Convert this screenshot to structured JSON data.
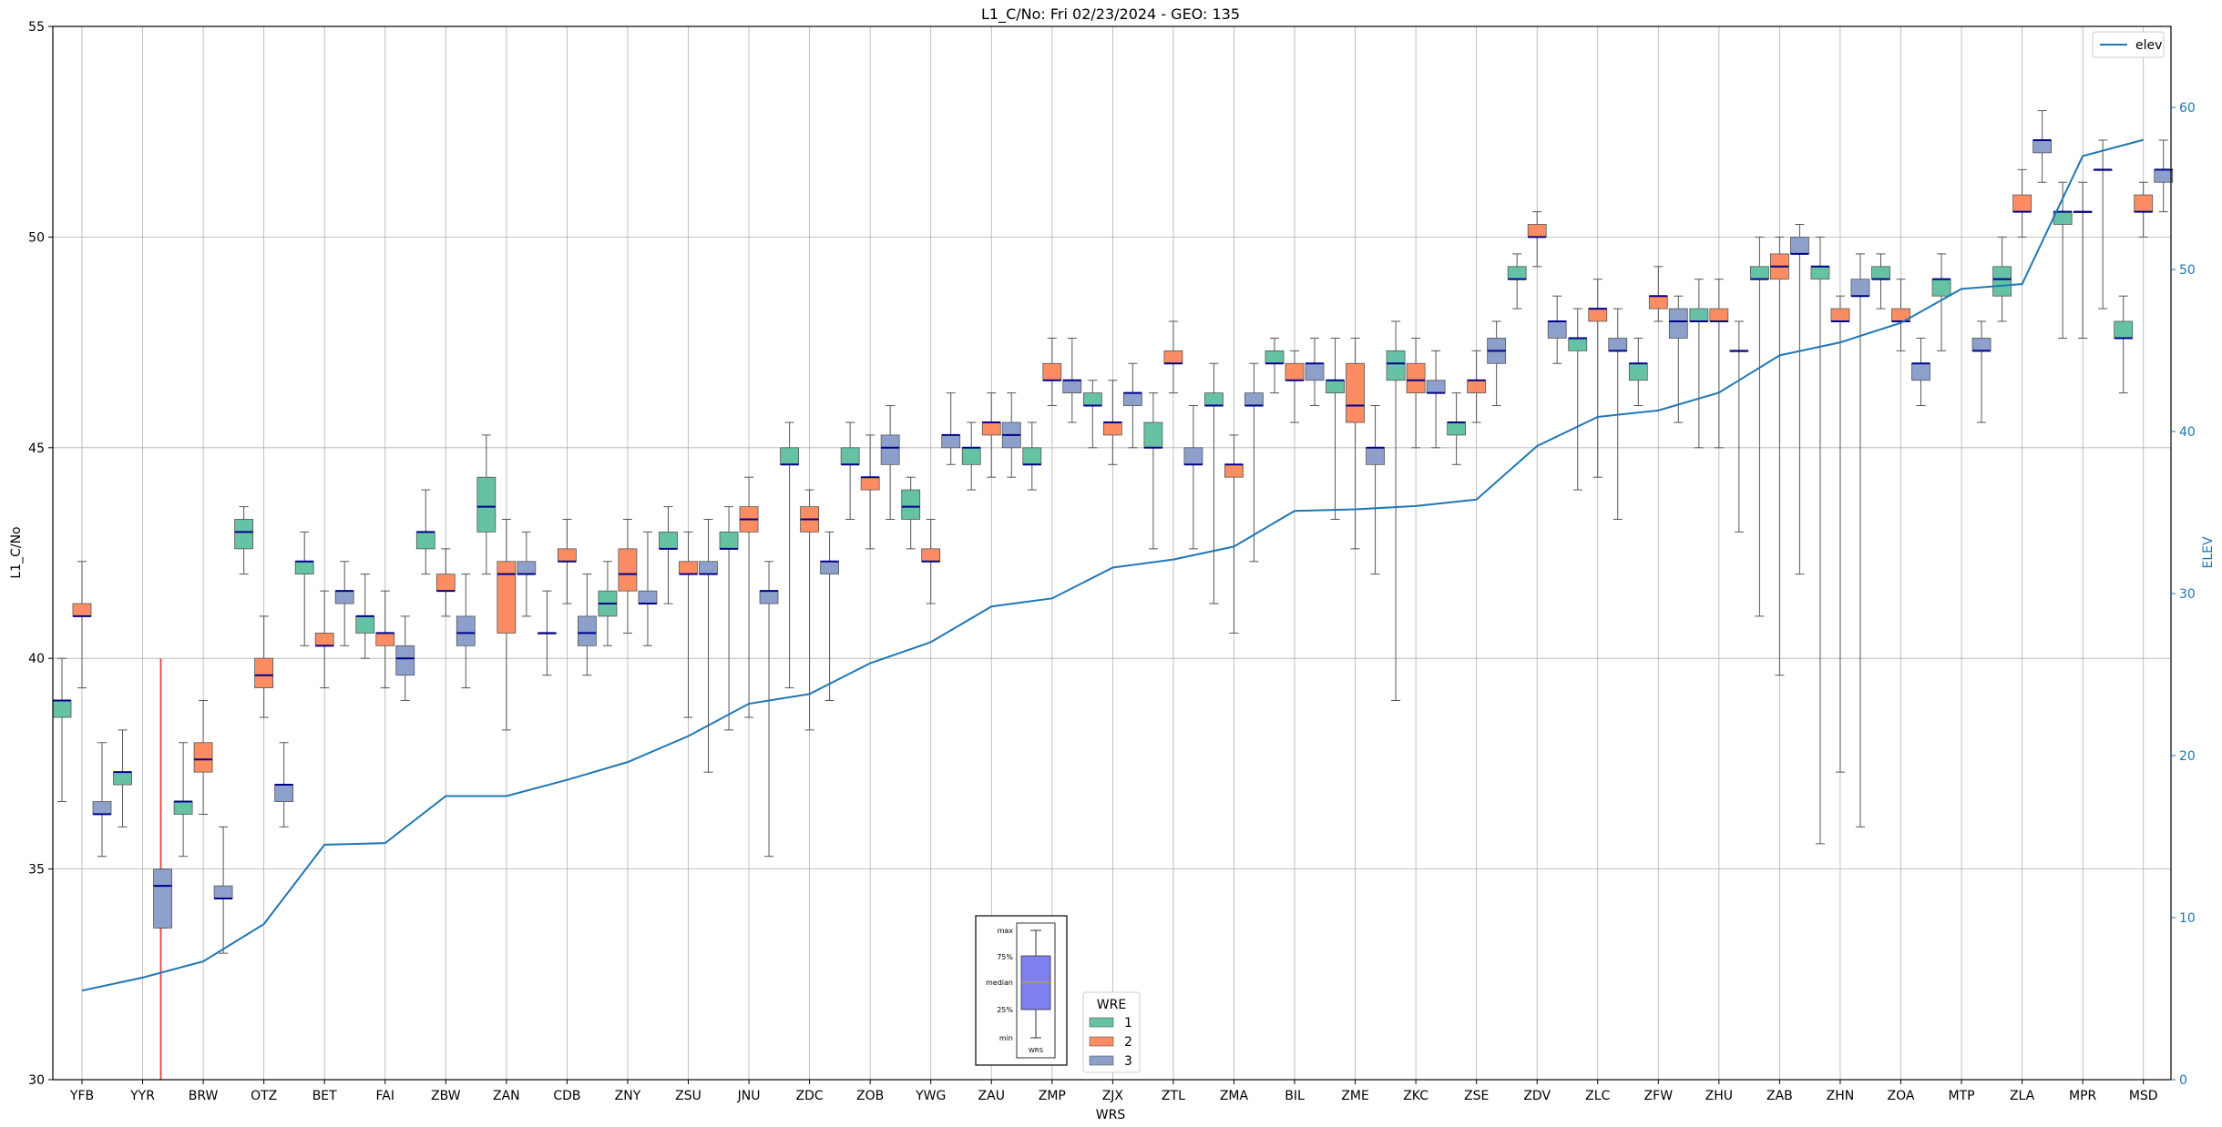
{
  "chart_data": {
    "type": "box",
    "title": "L1_C/No: Fri 02/23/2024 - GEO: 135",
    "xlabel": "WRS",
    "ylabel": "L1_C/No",
    "y2label": "ELEV",
    "ylim": [
      30,
      55
    ],
    "y2lim": [
      0,
      65
    ],
    "yticks": [
      "30",
      "35",
      "40",
      "45",
      "50",
      "55"
    ],
    "y2ticks": [
      "0",
      "10",
      "20",
      "30",
      "40",
      "50",
      "60"
    ],
    "grid": true,
    "categories": [
      "YFB",
      "YYR",
      "BRW",
      "OTZ",
      "BET",
      "FAI",
      "ZBW",
      "ZAN",
      "CDB",
      "ZNY",
      "ZSU",
      "JNU",
      "ZDC",
      "ZOB",
      "YWG",
      "ZAU",
      "ZMP",
      "ZJX",
      "ZTL",
      "ZMA",
      "BIL",
      "ZME",
      "ZKC",
      "ZSE",
      "ZDV",
      "ZLC",
      "ZFW",
      "ZHU",
      "ZAB",
      "ZHN",
      "ZOA",
      "MTP",
      "ZLA",
      "MPR",
      "MSD"
    ],
    "colors": {
      "1": "#66c2a5",
      "2": "#fc8d62",
      "3": "#8da0cb",
      "median": "#00008b",
      "whisker": "#555555",
      "elev": "#1f77b4",
      "marker": "#e8403f"
    },
    "legend_wre": {
      "title": "WRE",
      "items": [
        "1",
        "2",
        "3"
      ]
    },
    "legend_elev": {
      "label": "elev",
      "position": "top-right"
    },
    "inset_labels": {
      "max": "max",
      "p75": "75%",
      "median": "median",
      "p25": "25%",
      "min": "min",
      "wrs": "WRS"
    },
    "red_marker": {
      "x": 1.3,
      "y_min": 30,
      "y_max": 40
    },
    "elev": [
      5.5,
      6.3,
      7.3,
      9.6,
      14.5,
      14.6,
      17.5,
      17.5,
      18.5,
      19.6,
      21.2,
      23.2,
      23.8,
      25.7,
      27,
      29.2,
      29.7,
      31.6,
      32.1,
      32.9,
      35.1,
      35.2,
      35.4,
      35.8,
      39.1,
      40.9,
      41.3,
      42.4,
      44.7,
      45.5,
      46.7,
      48.8,
      49.1,
      57,
      58
    ],
    "boxes": [
      {
        "station": "YFB",
        "wre": "1",
        "min": 36.6,
        "q1": 38.6,
        "median": 39.0,
        "q3": 39.0,
        "max": 40.0
      },
      {
        "station": "YFB",
        "wre": "2",
        "min": 39.3,
        "q1": 41.0,
        "median": 41.0,
        "q3": 41.3,
        "max": 42.3
      },
      {
        "station": "YFB",
        "wre": "3",
        "min": 35.3,
        "q1": 36.3,
        "median": 36.3,
        "q3": 36.6,
        "max": 38.0
      },
      {
        "station": "YYR",
        "wre": "1",
        "min": 36.0,
        "q1": 37.0,
        "median": 37.3,
        "q3": 37.3,
        "max": 38.3
      },
      {
        "station": "YYR",
        "wre": "3",
        "min": 33.6,
        "q1": 33.6,
        "median": 34.6,
        "q3": 35.0,
        "max": 35.0
      },
      {
        "station": "BRW",
        "wre": "1",
        "min": 35.3,
        "q1": 36.3,
        "median": 36.6,
        "q3": 36.6,
        "max": 38.0
      },
      {
        "station": "BRW",
        "wre": "2",
        "min": 36.3,
        "q1": 37.3,
        "median": 37.6,
        "q3": 38.0,
        "max": 39.0
      },
      {
        "station": "BRW",
        "wre": "3",
        "min": 33.0,
        "q1": 34.3,
        "median": 34.3,
        "q3": 34.6,
        "max": 36.0
      },
      {
        "station": "OTZ",
        "wre": "1",
        "min": 42.0,
        "q1": 42.6,
        "median": 43.0,
        "q3": 43.3,
        "max": 43.6
      },
      {
        "station": "OTZ",
        "wre": "2",
        "min": 38.6,
        "q1": 39.3,
        "median": 39.6,
        "q3": 40.0,
        "max": 41.0
      },
      {
        "station": "OTZ",
        "wre": "3",
        "min": 36.0,
        "q1": 36.6,
        "median": 37.0,
        "q3": 37.0,
        "max": 38.0
      },
      {
        "station": "BET",
        "wre": "1",
        "min": 40.3,
        "q1": 42.0,
        "median": 42.3,
        "q3": 42.3,
        "max": 43.0
      },
      {
        "station": "BET",
        "wre": "2",
        "min": 39.3,
        "q1": 40.3,
        "median": 40.3,
        "q3": 40.6,
        "max": 41.6
      },
      {
        "station": "BET",
        "wre": "3",
        "min": 40.3,
        "q1": 41.3,
        "median": 41.6,
        "q3": 41.6,
        "max": 42.3
      },
      {
        "station": "FAI",
        "wre": "1",
        "min": 40.0,
        "q1": 40.6,
        "median": 41.0,
        "q3": 41.0,
        "max": 42.0
      },
      {
        "station": "FAI",
        "wre": "2",
        "min": 39.3,
        "q1": 40.3,
        "median": 40.6,
        "q3": 40.6,
        "max": 41.6
      },
      {
        "station": "FAI",
        "wre": "3",
        "min": 39.0,
        "q1": 39.6,
        "median": 40.0,
        "q3": 40.3,
        "max": 41.0
      },
      {
        "station": "ZBW",
        "wre": "1",
        "min": 42.0,
        "q1": 42.6,
        "median": 43.0,
        "q3": 43.0,
        "max": 44.0
      },
      {
        "station": "ZBW",
        "wre": "2",
        "min": 41.0,
        "q1": 41.6,
        "median": 41.6,
        "q3": 42.0,
        "max": 42.6
      },
      {
        "station": "ZBW",
        "wre": "3",
        "min": 39.3,
        "q1": 40.3,
        "median": 40.6,
        "q3": 41.0,
        "max": 42.0
      },
      {
        "station": "ZAN",
        "wre": "1",
        "min": 42.0,
        "q1": 43.0,
        "median": 43.6,
        "q3": 44.3,
        "max": 45.3
      },
      {
        "station": "ZAN",
        "wre": "2",
        "min": 38.3,
        "q1": 40.6,
        "median": 42.0,
        "q3": 42.3,
        "max": 43.3
      },
      {
        "station": "ZAN",
        "wre": "3",
        "min": 41.0,
        "q1": 42.0,
        "median": 42.0,
        "q3": 42.3,
        "max": 43.0
      },
      {
        "station": "CDB",
        "wre": "1",
        "min": 39.6,
        "q1": 40.6,
        "median": 40.6,
        "q3": 40.6,
        "max": 41.6
      },
      {
        "station": "CDB",
        "wre": "2",
        "min": 41.3,
        "q1": 42.3,
        "median": 42.3,
        "q3": 42.6,
        "max": 43.3
      },
      {
        "station": "CDB",
        "wre": "3",
        "min": 39.6,
        "q1": 40.3,
        "median": 40.6,
        "q3": 41.0,
        "max": 42.0
      },
      {
        "station": "ZNY",
        "wre": "1",
        "min": 40.3,
        "q1": 41.0,
        "median": 41.3,
        "q3": 41.6,
        "max": 42.3
      },
      {
        "station": "ZNY",
        "wre": "2",
        "min": 40.6,
        "q1": 41.6,
        "median": 42.0,
        "q3": 42.6,
        "max": 43.3
      },
      {
        "station": "ZNY",
        "wre": "3",
        "min": 40.3,
        "q1": 41.3,
        "median": 41.3,
        "q3": 41.6,
        "max": 43.0
      },
      {
        "station": "ZSU",
        "wre": "1",
        "min": 41.3,
        "q1": 42.6,
        "median": 42.6,
        "q3": 43.0,
        "max": 43.6
      },
      {
        "station": "ZSU",
        "wre": "2",
        "min": 38.6,
        "q1": 42.0,
        "median": 42.0,
        "q3": 42.3,
        "max": 43.0
      },
      {
        "station": "ZSU",
        "wre": "3",
        "min": 37.3,
        "q1": 42.0,
        "median": 42.0,
        "q3": 42.3,
        "max": 43.3
      },
      {
        "station": "JNU",
        "wre": "1",
        "min": 38.3,
        "q1": 42.6,
        "median": 42.6,
        "q3": 43.0,
        "max": 43.6
      },
      {
        "station": "JNU",
        "wre": "2",
        "min": 38.6,
        "q1": 43.0,
        "median": 43.3,
        "q3": 43.6,
        "max": 44.3
      },
      {
        "station": "JNU",
        "wre": "3",
        "min": 35.3,
        "q1": 41.3,
        "median": 41.6,
        "q3": 41.6,
        "max": 42.3
      },
      {
        "station": "ZDC",
        "wre": "1",
        "min": 39.3,
        "q1": 44.6,
        "median": 44.6,
        "q3": 45.0,
        "max": 45.6
      },
      {
        "station": "ZDC",
        "wre": "2",
        "min": 38.3,
        "q1": 43.0,
        "median": 43.3,
        "q3": 43.6,
        "max": 44.0
      },
      {
        "station": "ZDC",
        "wre": "3",
        "min": 39.0,
        "q1": 42.0,
        "median": 42.3,
        "q3": 42.3,
        "max": 43.0
      },
      {
        "station": "ZOB",
        "wre": "1",
        "min": 43.3,
        "q1": 44.6,
        "median": 44.6,
        "q3": 45.0,
        "max": 45.6
      },
      {
        "station": "ZOB",
        "wre": "2",
        "min": 42.6,
        "q1": 44.0,
        "median": 44.3,
        "q3": 44.3,
        "max": 45.3
      },
      {
        "station": "ZOB",
        "wre": "3",
        "min": 43.3,
        "q1": 44.6,
        "median": 45.0,
        "q3": 45.3,
        "max": 46.0
      },
      {
        "station": "YWG",
        "wre": "1",
        "min": 42.6,
        "q1": 43.3,
        "median": 43.6,
        "q3": 44.0,
        "max": 44.3
      },
      {
        "station": "YWG",
        "wre": "2",
        "min": 41.3,
        "q1": 42.3,
        "median": 42.3,
        "q3": 42.6,
        "max": 43.3
      },
      {
        "station": "YWG",
        "wre": "3",
        "min": 44.6,
        "q1": 45.0,
        "median": 45.3,
        "q3": 45.3,
        "max": 46.3
      },
      {
        "station": "ZAU",
        "wre": "1",
        "min": 44.0,
        "q1": 44.6,
        "median": 45.0,
        "q3": 45.0,
        "max": 45.6
      },
      {
        "station": "ZAU",
        "wre": "2",
        "min": 44.3,
        "q1": 45.3,
        "median": 45.6,
        "q3": 45.6,
        "max": 46.3
      },
      {
        "station": "ZAU",
        "wre": "3",
        "min": 44.3,
        "q1": 45.0,
        "median": 45.3,
        "q3": 45.6,
        "max": 46.3
      },
      {
        "station": "ZMP",
        "wre": "1",
        "min": 44.0,
        "q1": 44.6,
        "median": 44.6,
        "q3": 45.0,
        "max": 45.6
      },
      {
        "station": "ZMP",
        "wre": "2",
        "min": 46.0,
        "q1": 46.6,
        "median": 46.6,
        "q3": 47.0,
        "max": 47.6
      },
      {
        "station": "ZMP",
        "wre": "3",
        "min": 45.6,
        "q1": 46.3,
        "median": 46.6,
        "q3": 46.6,
        "max": 47.6
      },
      {
        "station": "ZJX",
        "wre": "1",
        "min": 45.0,
        "q1": 46.0,
        "median": 46.0,
        "q3": 46.3,
        "max": 46.6
      },
      {
        "station": "ZJX",
        "wre": "2",
        "min": 44.6,
        "q1": 45.3,
        "median": 45.6,
        "q3": 45.6,
        "max": 46.6
      },
      {
        "station": "ZJX",
        "wre": "3",
        "min": 45.0,
        "q1": 46.0,
        "median": 46.3,
        "q3": 46.3,
        "max": 47.0
      },
      {
        "station": "ZTL",
        "wre": "1",
        "min": 42.6,
        "q1": 45.0,
        "median": 45.0,
        "q3": 45.6,
        "max": 46.3
      },
      {
        "station": "ZTL",
        "wre": "2",
        "min": 46.3,
        "q1": 47.0,
        "median": 47.0,
        "q3": 47.3,
        "max": 48.0
      },
      {
        "station": "ZTL",
        "wre": "3",
        "min": 42.6,
        "q1": 44.6,
        "median": 44.6,
        "q3": 45.0,
        "max": 46.0
      },
      {
        "station": "ZMA",
        "wre": "1",
        "min": 41.3,
        "q1": 46.0,
        "median": 46.0,
        "q3": 46.3,
        "max": 47.0
      },
      {
        "station": "ZMA",
        "wre": "2",
        "min": 40.6,
        "q1": 44.3,
        "median": 44.6,
        "q3": 44.6,
        "max": 45.3
      },
      {
        "station": "ZMA",
        "wre": "3",
        "min": 42.3,
        "q1": 46.0,
        "median": 46.0,
        "q3": 46.3,
        "max": 47.0
      },
      {
        "station": "BIL",
        "wre": "1",
        "min": 46.3,
        "q1": 47.0,
        "median": 47.0,
        "q3": 47.3,
        "max": 47.6
      },
      {
        "station": "BIL",
        "wre": "2",
        "min": 45.6,
        "q1": 46.6,
        "median": 46.6,
        "q3": 47.0,
        "max": 47.3
      },
      {
        "station": "BIL",
        "wre": "3",
        "min": 46.0,
        "q1": 46.6,
        "median": 47.0,
        "q3": 47.0,
        "max": 47.6
      },
      {
        "station": "ZME",
        "wre": "1",
        "min": 43.3,
        "q1": 46.3,
        "median": 46.6,
        "q3": 46.6,
        "max": 47.6
      },
      {
        "station": "ZME",
        "wre": "2",
        "min": 42.6,
        "q1": 45.6,
        "median": 46.0,
        "q3": 47.0,
        "max": 47.6
      },
      {
        "station": "ZME",
        "wre": "3",
        "min": 42.0,
        "q1": 44.6,
        "median": 45.0,
        "q3": 45.0,
        "max": 46.0
      },
      {
        "station": "ZKC",
        "wre": "1",
        "min": 39.0,
        "q1": 46.6,
        "median": 47.0,
        "q3": 47.3,
        "max": 48.0
      },
      {
        "station": "ZKC",
        "wre": "2",
        "min": 45.0,
        "q1": 46.3,
        "median": 46.6,
        "q3": 47.0,
        "max": 47.6
      },
      {
        "station": "ZKC",
        "wre": "3",
        "min": 45.0,
        "q1": 46.3,
        "median": 46.3,
        "q3": 46.6,
        "max": 47.3
      },
      {
        "station": "ZSE",
        "wre": "1",
        "min": 44.6,
        "q1": 45.3,
        "median": 45.6,
        "q3": 45.6,
        "max": 46.3
      },
      {
        "station": "ZSE",
        "wre": "2",
        "min": 45.6,
        "q1": 46.3,
        "median": 46.6,
        "q3": 46.6,
        "max": 47.3
      },
      {
        "station": "ZSE",
        "wre": "3",
        "min": 46.0,
        "q1": 47.0,
        "median": 47.3,
        "q3": 47.6,
        "max": 48.0
      },
      {
        "station": "ZDV",
        "wre": "1",
        "min": 48.3,
        "q1": 49.0,
        "median": 49.0,
        "q3": 49.3,
        "max": 49.6
      },
      {
        "station": "ZDV",
        "wre": "2",
        "min": 49.3,
        "q1": 50.0,
        "median": 50.0,
        "q3": 50.3,
        "max": 50.6
      },
      {
        "station": "ZDV",
        "wre": "3",
        "min": 47.0,
        "q1": 47.6,
        "median": 48.0,
        "q3": 48.0,
        "max": 48.6
      },
      {
        "station": "ZLC",
        "wre": "1",
        "min": 44.0,
        "q1": 47.3,
        "median": 47.6,
        "q3": 47.6,
        "max": 48.3
      },
      {
        "station": "ZLC",
        "wre": "2",
        "min": 44.3,
        "q1": 48.0,
        "median": 48.3,
        "q3": 48.3,
        "max": 49.0
      },
      {
        "station": "ZLC",
        "wre": "3",
        "min": 43.3,
        "q1": 47.3,
        "median": 47.3,
        "q3": 47.6,
        "max": 48.3
      },
      {
        "station": "ZFW",
        "wre": "1",
        "min": 46.0,
        "q1": 46.6,
        "median": 47.0,
        "q3": 47.0,
        "max": 47.6
      },
      {
        "station": "ZFW",
        "wre": "2",
        "min": 48.0,
        "q1": 48.3,
        "median": 48.6,
        "q3": 48.6,
        "max": 49.3
      },
      {
        "station": "ZFW",
        "wre": "3",
        "min": 45.6,
        "q1": 47.6,
        "median": 48.0,
        "q3": 48.3,
        "max": 48.6
      },
      {
        "station": "ZHU",
        "wre": "1",
        "min": 45.0,
        "q1": 48.0,
        "median": 48.0,
        "q3": 48.3,
        "max": 49.0
      },
      {
        "station": "ZHU",
        "wre": "2",
        "min": 45.0,
        "q1": 48.0,
        "median": 48.0,
        "q3": 48.3,
        "max": 49.0
      },
      {
        "station": "ZHU",
        "wre": "3",
        "min": 43.0,
        "q1": 47.3,
        "median": 47.3,
        "q3": 47.3,
        "max": 48.0
      },
      {
        "station": "ZAB",
        "wre": "1",
        "min": 41.0,
        "q1": 49.0,
        "median": 49.0,
        "q3": 49.3,
        "max": 50.0
      },
      {
        "station": "ZAB",
        "wre": "2",
        "min": 39.6,
        "q1": 49.0,
        "median": 49.3,
        "q3": 49.6,
        "max": 50.0
      },
      {
        "station": "ZAB",
        "wre": "3",
        "min": 42.0,
        "q1": 49.6,
        "median": 49.6,
        "q3": 50.0,
        "max": 50.3
      },
      {
        "station": "ZHN",
        "wre": "1",
        "min": 35.6,
        "q1": 49.0,
        "median": 49.3,
        "q3": 49.3,
        "max": 50.0
      },
      {
        "station": "ZHN",
        "wre": "2",
        "min": 37.3,
        "q1": 48.0,
        "median": 48.0,
        "q3": 48.3,
        "max": 48.6
      },
      {
        "station": "ZHN",
        "wre": "3",
        "min": 36.0,
        "q1": 48.6,
        "median": 48.6,
        "q3": 49.0,
        "max": 49.6
      },
      {
        "station": "ZOA",
        "wre": "1",
        "min": 48.3,
        "q1": 49.0,
        "median": 49.0,
        "q3": 49.3,
        "max": 49.6
      },
      {
        "station": "ZOA",
        "wre": "2",
        "min": 47.3,
        "q1": 48.0,
        "median": 48.0,
        "q3": 48.3,
        "max": 49.0
      },
      {
        "station": "ZOA",
        "wre": "3",
        "min": 46.0,
        "q1": 46.6,
        "median": 47.0,
        "q3": 47.0,
        "max": 47.6
      },
      {
        "station": "MTP",
        "wre": "1",
        "min": 47.3,
        "q1": 48.6,
        "median": 49.0,
        "q3": 49.0,
        "max": 49.6
      },
      {
        "station": "MTP",
        "wre": "3",
        "min": 45.6,
        "q1": 47.3,
        "median": 47.3,
        "q3": 47.6,
        "max": 48.0
      },
      {
        "station": "ZLA",
        "wre": "1",
        "min": 48.0,
        "q1": 48.6,
        "median": 49.0,
        "q3": 49.3,
        "max": 50.0
      },
      {
        "station": "ZLA",
        "wre": "2",
        "min": 50.0,
        "q1": 50.6,
        "median": 50.6,
        "q3": 51.0,
        "max": 51.6
      },
      {
        "station": "ZLA",
        "wre": "3",
        "min": 51.3,
        "q1": 52.0,
        "median": 52.3,
        "q3": 52.3,
        "max": 53.0
      },
      {
        "station": "MPR",
        "wre": "1",
        "min": 47.6,
        "q1": 50.3,
        "median": 50.6,
        "q3": 50.6,
        "max": 51.3
      },
      {
        "station": "MPR",
        "wre": "2",
        "min": 47.6,
        "q1": 50.6,
        "median": 50.6,
        "q3": 50.6,
        "max": 51.3
      },
      {
        "station": "MPR",
        "wre": "3",
        "min": 48.3,
        "q1": 51.6,
        "median": 51.6,
        "q3": 51.6,
        "max": 52.3
      },
      {
        "station": "MSD",
        "wre": "1",
        "min": 46.3,
        "q1": 47.6,
        "median": 47.6,
        "q3": 48.0,
        "max": 48.6
      },
      {
        "station": "MSD",
        "wre": "2",
        "min": 50.0,
        "q1": 50.6,
        "median": 50.6,
        "q3": 51.0,
        "max": 51.3
      },
      {
        "station": "MSD",
        "wre": "3",
        "min": 50.6,
        "q1": 51.3,
        "median": 51.6,
        "q3": 51.6,
        "max": 52.3
      }
    ]
  }
}
